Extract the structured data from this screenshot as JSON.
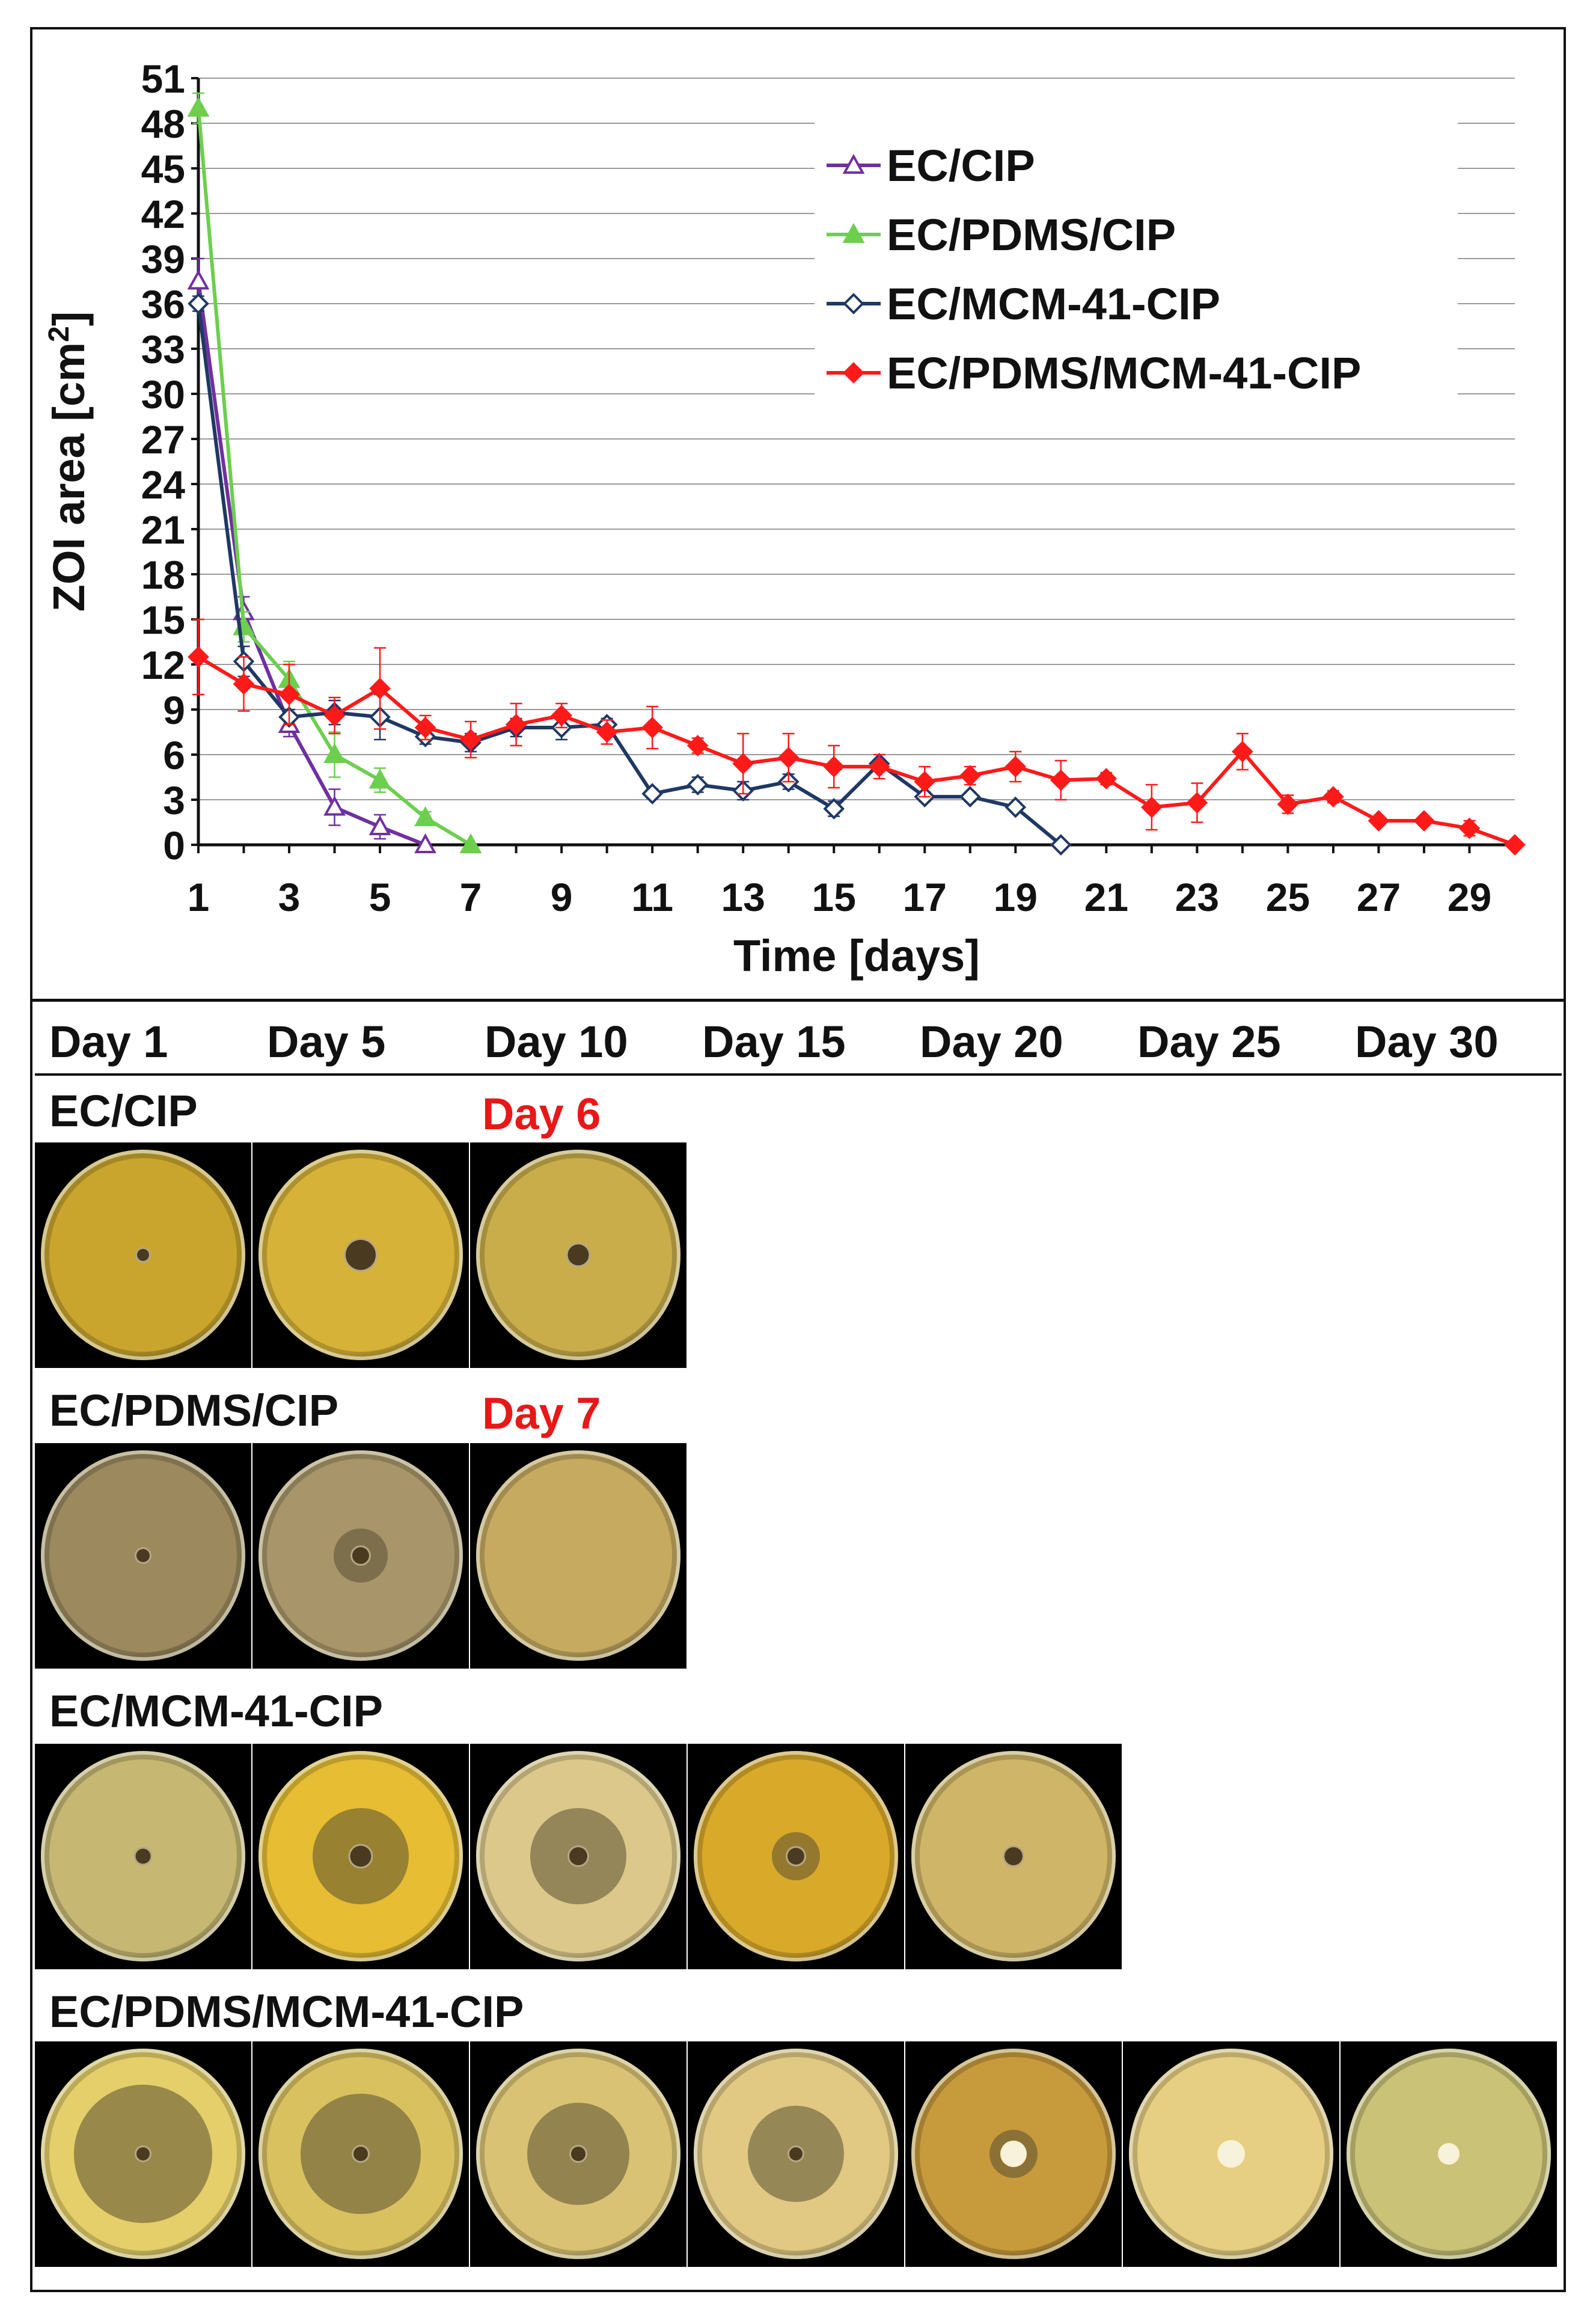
{
  "chart_data": {
    "type": "line",
    "xlabel": "Time [days]",
    "ylabel_main": "ZOI area  [cm",
    "ylabel_sup": "2",
    "ylabel_end": "]",
    "xlim": [
      1,
      30
    ],
    "ylim": [
      0,
      51
    ],
    "xticks": [
      1,
      3,
      5,
      7,
      9,
      11,
      13,
      15,
      17,
      19,
      21,
      23,
      25,
      27,
      29
    ],
    "yticks": [
      0,
      3,
      6,
      9,
      12,
      15,
      18,
      21,
      24,
      27,
      30,
      33,
      36,
      39,
      42,
      45,
      48,
      51
    ],
    "grid": "horizontal",
    "legend_position": "top-right",
    "series": [
      {
        "name": "EC/CIP",
        "color": "#7030a0",
        "marker": "triangle-open",
        "x": [
          1,
          2,
          3,
          4,
          5,
          6
        ],
        "y": [
          37.5,
          15.5,
          8.0,
          2.5,
          1.2,
          0
        ],
        "err": [
          1.5,
          1.0,
          0.8,
          1.2,
          0.8,
          0
        ]
      },
      {
        "name": "EC/PDMS/CIP",
        "color": "#6ccf4e",
        "marker": "triangle-filled",
        "x": [
          1,
          2,
          3,
          4,
          5,
          6,
          7
        ],
        "y": [
          49.0,
          14.5,
          11.0,
          6.0,
          4.3,
          1.8,
          0
        ],
        "err": [
          1.0,
          1.0,
          1.2,
          1.5,
          0.8,
          0.4,
          0
        ]
      },
      {
        "name": "EC/MCM-41-CIP",
        "color": "#1f3864",
        "marker": "diamond-open",
        "x": [
          1,
          2,
          3,
          4,
          5,
          6,
          7,
          8,
          9,
          10,
          11,
          12,
          13,
          14,
          15,
          16,
          17,
          18,
          19,
          20
        ],
        "y": [
          36.0,
          12.2,
          8.5,
          8.8,
          8.5,
          7.2,
          6.8,
          7.8,
          7.8,
          8.0,
          3.4,
          4.0,
          3.6,
          4.2,
          2.4,
          5.4,
          3.2,
          3.2,
          2.5,
          0
        ],
        "err": [
          0.5,
          1.0,
          0.5,
          0.8,
          1.5,
          0.5,
          0.6,
          0.6,
          0.8,
          0.4,
          0.3,
          0.5,
          0.6,
          0.5,
          0.5,
          0.3,
          0.3,
          0.3,
          0.3,
          0
        ]
      },
      {
        "name": "EC/PDMS/MCM-41-CIP",
        "color": "#ff1a1a",
        "marker": "diamond-filled",
        "x": [
          1,
          2,
          3,
          4,
          5,
          6,
          7,
          8,
          9,
          10,
          11,
          12,
          13,
          14,
          15,
          16,
          17,
          18,
          19,
          20,
          21,
          22,
          23,
          24,
          25,
          26,
          27,
          28,
          29,
          30
        ],
        "y": [
          12.5,
          10.7,
          10.0,
          8.6,
          10.4,
          7.8,
          7.0,
          8.0,
          8.6,
          7.5,
          7.8,
          6.6,
          5.4,
          5.8,
          5.2,
          5.2,
          4.2,
          4.6,
          5.2,
          4.3,
          4.4,
          2.5,
          2.8,
          6.2,
          2.7,
          3.2,
          1.6,
          1.6,
          1.1,
          0
        ],
        "err": [
          2.5,
          1.8,
          2.0,
          1.2,
          2.7,
          0.8,
          1.2,
          1.4,
          0.8,
          0.8,
          1.4,
          0.5,
          2.0,
          1.6,
          1.4,
          0.8,
          1.0,
          0.6,
          1.0,
          1.3,
          0.4,
          1.5,
          1.3,
          1.2,
          0.6,
          0.4,
          0.3,
          0.3,
          0.5,
          0
        ]
      }
    ]
  },
  "day_headers": [
    "Day 1",
    "Day 5",
    "Day 10",
    "Day 15",
    "Day 20",
    "Day 25",
    "Day 30"
  ],
  "rows": [
    {
      "label": "EC/CIP",
      "end_note": "Day 6",
      "plates": 3
    },
    {
      "label": "EC/PDMS/CIP",
      "end_note": "Day 7",
      "plates": 3
    },
    {
      "label": "EC/MCM-41-CIP",
      "end_note": "",
      "plates": 5
    },
    {
      "label": "EC/PDMS/MCM-41-CIP",
      "end_note": "",
      "plates": 7
    }
  ],
  "colors": {
    "end_note": "#e81818"
  }
}
